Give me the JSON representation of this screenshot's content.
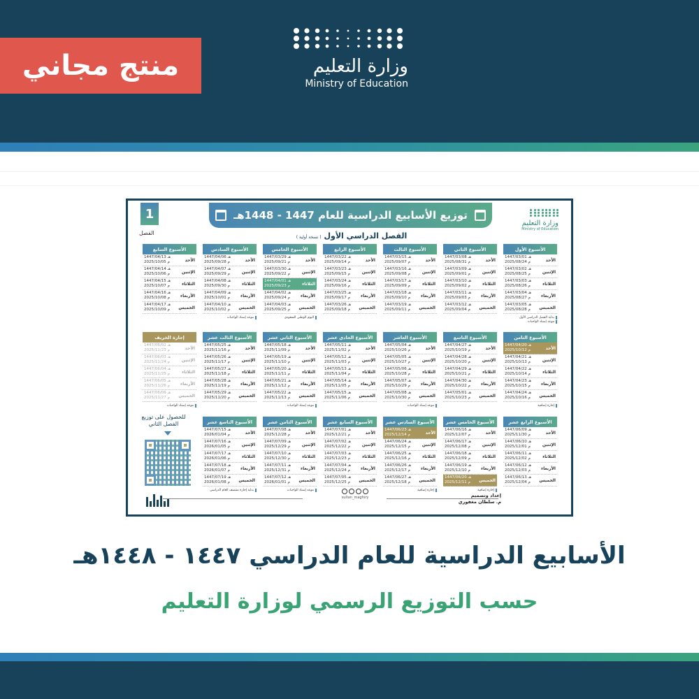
{
  "promo_badge": "منتج مجاني",
  "ministry": {
    "arabic": "وزارة التعليم",
    "english": "Ministry of Education"
  },
  "calendar": {
    "title": "توزيع الأسابيع الدراسية للعام 1447 - 1448هـ",
    "semester_number": "1",
    "semester_label": "الفصل",
    "subtitle": "الفصل الدراسي الأول",
    "subtitle_note": "( نسخة أولية )",
    "hijri_suffix": "هـ",
    "greg_suffix": "م",
    "day_names": [
      "الأحد",
      "الإثنين",
      "الثلاثاء",
      "الأربعاء",
      "الخميس"
    ],
    "weeks": [
      {
        "title": "الأسبوع الأول",
        "days": [
          [
            "1447/03/01",
            "2025/08/24"
          ],
          [
            "1447/03/02",
            "2025/08/25"
          ],
          [
            "1447/03/03",
            "2025/08/26"
          ],
          [
            "1447/03/04",
            "2025/08/27"
          ],
          [
            "1447/03/05",
            "2025/08/28"
          ]
        ],
        "notes": [
          "بداية الفصل الدراسي الأول",
          "موعد إسناد الواجبات"
        ]
      },
      {
        "title": "الأسبوع الثاني",
        "days": [
          [
            "1447/03/08",
            "2025/08/31"
          ],
          [
            "1447/03/09",
            "2025/09/01"
          ],
          [
            "1447/03/10",
            "2025/09/02"
          ],
          [
            "1447/03/11",
            "2025/09/03"
          ],
          [
            "1447/03/12",
            "2025/09/04"
          ]
        ],
        "notes": []
      },
      {
        "title": "الأسبوع الثالث",
        "days": [
          [
            "1447/03/15",
            "2025/09/07"
          ],
          [
            "1447/03/16",
            "2025/09/08"
          ],
          [
            "1447/03/17",
            "2025/09/09"
          ],
          [
            "1447/03/18",
            "2025/09/10"
          ],
          [
            "1447/03/19",
            "2025/09/11"
          ]
        ],
        "notes": []
      },
      {
        "title": "الأسبوع الرابع",
        "days": [
          [
            "1447/03/22",
            "2025/09/14"
          ],
          [
            "1447/03/23",
            "2025/09/15"
          ],
          [
            "1447/03/24",
            "2025/09/16"
          ],
          [
            "1447/03/25",
            "2025/09/17"
          ],
          [
            "1447/03/26",
            "2025/09/18"
          ]
        ],
        "notes": []
      },
      {
        "title": "الأسبوع الخامس",
        "days": [
          [
            "1447/03/29",
            "2025/09/21"
          ],
          [
            "1447/03/30",
            "2025/09/22"
          ],
          [
            "1447/04/01",
            "2025/09/23"
          ],
          [
            "1447/04/02",
            "2025/09/24"
          ],
          [
            "1447/04/03",
            "2025/09/25"
          ]
        ],
        "highlight": {
          "2": "teal"
        },
        "notes": [
          "اليوم الوطني السعودي"
        ]
      },
      {
        "title": "الأسبوع السادس",
        "days": [
          [
            "1447/04/06",
            "2025/09/28"
          ],
          [
            "1447/04/07",
            "2025/09/29"
          ],
          [
            "1447/04/08",
            "2025/09/30"
          ],
          [
            "1447/04/09",
            "2025/10/01"
          ],
          [
            "1447/04/10",
            "2025/10/02"
          ]
        ],
        "notes": [
          "موعد إسناد الواجبات"
        ]
      },
      {
        "title": "الأسبوع السابع",
        "days": [
          [
            "1447/04/13",
            "2025/10/05"
          ],
          [
            "1447/04/14",
            "2025/10/06"
          ],
          [
            "1447/04/15",
            "2025/10/07"
          ],
          [
            "1447/04/16",
            "2025/10/08"
          ],
          [
            "1447/04/17",
            "2025/10/09"
          ]
        ],
        "notes": []
      },
      {
        "title": "الأسبوع الثامن",
        "days": [
          [
            "1447/04/20",
            "2025/10/12"
          ],
          [
            "1447/04/21",
            "2025/10/13"
          ],
          [
            "1447/04/22",
            "2025/10/14"
          ],
          [
            "1447/04/23",
            "2025/10/15"
          ],
          [
            "1447/04/24",
            "2025/10/16"
          ]
        ],
        "highlight": {
          "0": "gold"
        },
        "notes": [
          "إجازة إضافية"
        ]
      },
      {
        "title": "الأسبوع التاسع",
        "days": [
          [
            "1447/04/27",
            "2025/10/19"
          ],
          [
            "1447/04/28",
            "2025/10/20"
          ],
          [
            "1447/04/29",
            "2025/10/21"
          ],
          [
            "1447/04/30",
            "2025/10/22"
          ],
          [
            "1447/05/01",
            "2025/10/23"
          ]
        ],
        "notes": []
      },
      {
        "title": "الأسبوع العاشر",
        "days": [
          [
            "1447/05/04",
            "2025/10/26"
          ],
          [
            "1447/05/05",
            "2025/10/27"
          ],
          [
            "1447/05/06",
            "2025/10/28"
          ],
          [
            "1447/05/07",
            "2025/10/29"
          ],
          [
            "1447/05/08",
            "2025/10/30"
          ]
        ],
        "notes": [
          "موعد إسناد الواجبات"
        ]
      },
      {
        "title": "الأسبوع الحادي عشر",
        "days": [
          [
            "1447/05/11",
            "2025/11/02"
          ],
          [
            "1447/05/12",
            "2025/11/03"
          ],
          [
            "1447/05/13",
            "2025/11/04"
          ],
          [
            "1447/05/14",
            "2025/11/05"
          ],
          [
            "1447/05/15",
            "2025/11/06"
          ]
        ],
        "notes": []
      },
      {
        "title": "الأسبوع الثاني عشر",
        "days": [
          [
            "1447/05/18",
            "2025/11/09"
          ],
          [
            "1447/05/19",
            "2025/11/10"
          ],
          [
            "1447/05/20",
            "2025/11/11"
          ],
          [
            "1447/05/21",
            "2025/11/12"
          ],
          [
            "1447/05/22",
            "2025/11/13"
          ]
        ],
        "notes": [
          "موعد إسناد الواجبات"
        ]
      },
      {
        "title": "الأسبوع الثالث عشر",
        "days": [
          [
            "1447/05/25",
            "2025/11/16"
          ],
          [
            "1447/05/26",
            "2025/11/17"
          ],
          [
            "1447/05/27",
            "2025/11/18"
          ],
          [
            "1447/05/28",
            "2025/11/19"
          ],
          [
            "1447/05/29",
            "2025/11/20"
          ]
        ],
        "notes": []
      },
      {
        "title": "إجازة الخريف",
        "gold": true,
        "muted": true,
        "days": [
          [
            "1447/06/02",
            "2025/11/23"
          ],
          [
            "1447/06/03",
            "2025/11/24"
          ],
          [
            "1447/06/04",
            "2025/11/25"
          ],
          [
            "1447/06/05",
            "2025/11/26"
          ],
          [
            "1447/06/06",
            "2025/11/27"
          ]
        ],
        "notes": [
          "موعد إسناد الواجبات"
        ]
      },
      {
        "title": "الأسبوع الرابع عشر",
        "days": [
          [
            "1447/06/09",
            "2025/11/30"
          ],
          [
            "1447/06/10",
            "2025/12/01"
          ],
          [
            "1447/06/11",
            "2025/12/02"
          ],
          [
            "1447/06/12",
            "2025/12/03"
          ],
          [
            "1447/06/13",
            "2025/12/04"
          ]
        ],
        "notes": []
      },
      {
        "title": "الأسبوع الخامس عشر",
        "days": [
          [
            "1447/06/16",
            "2025/12/07"
          ],
          [
            "1447/06/17",
            "2025/12/08"
          ],
          [
            "1447/06/18",
            "2025/12/09"
          ],
          [
            "1447/06/19",
            "2025/12/10"
          ],
          [
            "1447/06/20",
            "2025/12/11"
          ]
        ],
        "highlight": {
          "4": "gold"
        },
        "notes": [
          "إجازة إضافية"
        ]
      },
      {
        "title": "الأسبوع السادس عشر",
        "days": [
          [
            "1447/06/23",
            "2025/12/14"
          ],
          [
            "1447/06/24",
            "2025/12/15"
          ],
          [
            "1447/06/25",
            "2025/12/16"
          ],
          [
            "1447/06/26",
            "2025/12/17"
          ],
          [
            "1447/06/27",
            "2025/12/18"
          ]
        ],
        "highlight": {
          "0": "gold"
        },
        "notes": [
          "إجازة إضافية"
        ]
      },
      {
        "title": "الأسبوع السابع عشر",
        "days": [
          [
            "1447/07/01",
            "2025/12/21"
          ],
          [
            "1447/07/02",
            "2025/12/22"
          ],
          [
            "1447/07/03",
            "2025/12/23"
          ],
          [
            "1447/07/04",
            "2025/12/24"
          ],
          [
            "1447/07/05",
            "2025/12/25"
          ]
        ],
        "notes": []
      },
      {
        "title": "الأسبوع الثامن عشر",
        "days": [
          [
            "1447/07/08",
            "2025/12/28"
          ],
          [
            "1447/07/09",
            "2025/12/29"
          ],
          [
            "1447/07/10",
            "2025/12/30"
          ],
          [
            "1447/07/11",
            "2025/12/31"
          ],
          [
            "1447/07/12",
            "2026/01/01"
          ]
        ],
        "notes": [
          "موعد إسناد الواجبات"
        ]
      },
      {
        "title": "الأسبوع التاسع عشر",
        "days": [
          [
            "1447/07/15",
            "2026/01/04"
          ],
          [
            "1447/07/16",
            "2026/01/05"
          ],
          [
            "1447/07/17",
            "2026/01/06"
          ],
          [
            "1447/07/18",
            "2026/01/07"
          ],
          [
            "1447/07/19",
            "2026/01/08"
          ]
        ],
        "notes": [
          "بداية إجازة منتصف العام الدراسي"
        ]
      }
    ],
    "qr_text": "للحصول على توزيع الفصل الثاني",
    "credit_label": "إعداد وتصميم",
    "credit_name": "م. سلطان مغفوري",
    "social_handle": "sultan_magfory"
  },
  "headline": "الأسابيع الدراسية للعام الدراسي ١٤٤٧ - ١٤٤٨هـ",
  "subheadline": "حسب التوزيع الرسمي لوزارة التعليم",
  "colors": {
    "navy": "#17425a",
    "promo_red": "#e0584d",
    "header_blue": "#4a86b4",
    "header_green": "#5aaa8a",
    "gold": "#a8965d",
    "subheadline_green": "#3aa374"
  }
}
